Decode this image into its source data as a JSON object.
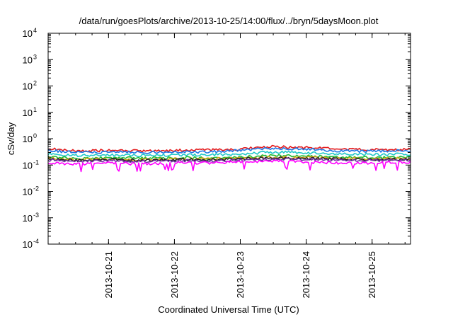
{
  "chart_data": {
    "type": "line",
    "title": "/data/run/goesPlots/archive/2013-10-25/14:00/flux/../bryn/5daysMoon.plot",
    "xlabel": "Coordinated Universal Time (UTC)",
    "ylabel": "cSv/day",
    "yscale": "log",
    "ylim": [
      0.0001,
      10000
    ],
    "xlim": [
      "2013-10-20T02:00",
      "2013-10-25T14:00"
    ],
    "grid": false,
    "legend": "none",
    "y_ticks": [
      {
        "value": 0.0001,
        "base": "10",
        "exp": "-4"
      },
      {
        "value": 0.001,
        "base": "10",
        "exp": "-3"
      },
      {
        "value": 0.01,
        "base": "10",
        "exp": "-2"
      },
      {
        "value": 0.1,
        "base": "10",
        "exp": "-1"
      },
      {
        "value": 1,
        "base": "10",
        "exp": "0"
      },
      {
        "value": 10,
        "base": "10",
        "exp": "1"
      },
      {
        "value": 100,
        "base": "10",
        "exp": "2"
      },
      {
        "value": 1000,
        "base": "10",
        "exp": "3"
      },
      {
        "value": 10000,
        "base": "10",
        "exp": "4"
      }
    ],
    "x_ticks": [
      {
        "value": "2013-10-21T00:00",
        "label": "2013-10-21"
      },
      {
        "value": "2013-10-22T00:00",
        "label": "2013-10-22"
      },
      {
        "value": "2013-10-23T00:00",
        "label": "2013-10-23"
      },
      {
        "value": "2013-10-24T00:00",
        "label": "2013-10-24"
      },
      {
        "value": "2013-10-25T00:00",
        "label": "2013-10-25"
      }
    ],
    "x": [
      "2013-10-20T02:00",
      "2013-10-20T12:00",
      "2013-10-21T00:00",
      "2013-10-21T12:00",
      "2013-10-22T00:00",
      "2013-10-22T12:00",
      "2013-10-23T00:00",
      "2013-10-23T12:00",
      "2013-10-24T00:00",
      "2013-10-24T12:00",
      "2013-10-25T00:00",
      "2013-10-25T14:00"
    ],
    "series": [
      {
        "color": "#e41a1c",
        "values": [
          0.42,
          0.34,
          0.36,
          0.34,
          0.36,
          0.37,
          0.4,
          0.5,
          0.46,
          0.4,
          0.38,
          0.4
        ]
      },
      {
        "color": "#1f77e4",
        "values": [
          0.36,
          0.3,
          0.31,
          0.3,
          0.31,
          0.32,
          0.35,
          0.44,
          0.4,
          0.35,
          0.33,
          0.35
        ]
      },
      {
        "color": "#20c8c8",
        "values": [
          0.26,
          0.23,
          0.24,
          0.23,
          0.24,
          0.24,
          0.26,
          0.31,
          0.29,
          0.26,
          0.25,
          0.26
        ]
      },
      {
        "color": "#22bb33",
        "values": [
          0.2,
          0.18,
          0.19,
          0.18,
          0.19,
          0.19,
          0.2,
          0.23,
          0.22,
          0.2,
          0.19,
          0.2
        ]
      },
      {
        "color": "#d4a017",
        "values": [
          0.18,
          0.16,
          0.17,
          0.16,
          0.17,
          0.17,
          0.18,
          0.2,
          0.19,
          0.18,
          0.17,
          0.18
        ]
      },
      {
        "color": "#222222",
        "values": [
          0.17,
          0.15,
          0.16,
          0.15,
          0.16,
          0.16,
          0.17,
          0.19,
          0.18,
          0.17,
          0.16,
          0.17
        ]
      },
      {
        "color": "#7030a0",
        "values": [
          0.155,
          0.14,
          0.145,
          0.14,
          0.145,
          0.145,
          0.155,
          0.17,
          0.165,
          0.155,
          0.15,
          0.155
        ]
      },
      {
        "color": "#ff00ff",
        "values": [
          0.12,
          0.11,
          0.12,
          0.11,
          0.12,
          0.12,
          0.13,
          0.14,
          0.13,
          0.12,
          0.12,
          0.13
        ]
      }
    ]
  }
}
